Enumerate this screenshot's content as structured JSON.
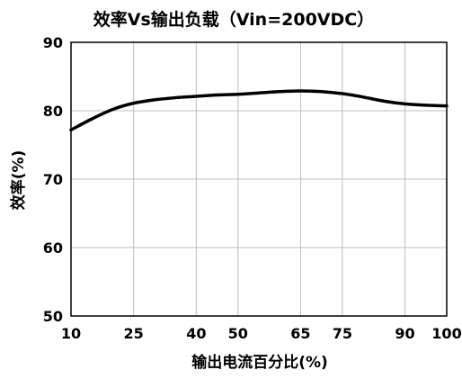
{
  "chart_data": {
    "type": "line",
    "title": "效率Vs输出负载（Vin=200VDC）",
    "xlabel": "输出电流百分比(%)",
    "ylabel": "效率(%)",
    "xlim": [
      10,
      100
    ],
    "ylim": [
      50,
      90
    ],
    "xticks": [
      10,
      25,
      40,
      50,
      65,
      75,
      90,
      100
    ],
    "yticks": [
      50,
      60,
      70,
      80,
      90
    ],
    "grid": true,
    "legend": "none",
    "series": [
      {
        "x": [
          10,
          15,
          20,
          25,
          30,
          35,
          40,
          45,
          50,
          55,
          60,
          65,
          70,
          75,
          80,
          85,
          90,
          95,
          100
        ],
        "y": [
          77.2,
          78.8,
          80.2,
          81.1,
          81.6,
          81.9,
          82.1,
          82.3,
          82.4,
          82.6,
          82.8,
          82.9,
          82.8,
          82.5,
          82.0,
          81.4,
          81.0,
          80.8,
          80.7
        ],
        "color": "#000000"
      }
    ]
  }
}
